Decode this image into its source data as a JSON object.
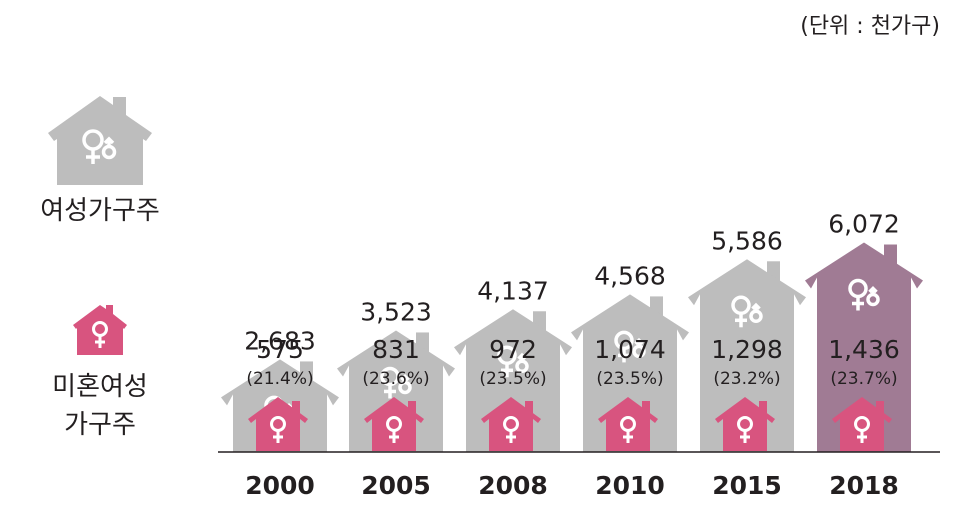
{
  "unit_label": "(단위 : 천가구)",
  "legend": {
    "all_label": "여성가구주",
    "unmarried_label_line1": "미혼여성",
    "unmarried_label_line2": "가구주"
  },
  "colors": {
    "house_gray": "#bdbdbd",
    "house_highlight": "#a07b94",
    "pink": "#d8547f",
    "text": "#231f20"
  },
  "icons": {
    "all_icon": "female-with-child-icon",
    "unmarried_icon": "female-symbol-icon"
  },
  "chart_data": {
    "type": "bar",
    "categories": [
      "2000",
      "2005",
      "2008",
      "2010",
      "2015",
      "2018"
    ],
    "series": [
      {
        "name": "여성가구주",
        "values": [
          2683,
          3523,
          4137,
          4568,
          5586,
          6072
        ]
      },
      {
        "name": "미혼여성 가구주",
        "values": [
          575,
          831,
          972,
          1074,
          1298,
          1436
        ]
      }
    ],
    "value_labels": [
      "2,683",
      "3,523",
      "4,137",
      "4,568",
      "5,586",
      "6,072"
    ],
    "unmarried_labels": [
      "575",
      "831",
      "972",
      "1,074",
      "1,298",
      "1,436"
    ],
    "share_labels": [
      "(21.4%)",
      "(23.6%)",
      "(23.5%)",
      "(23.5%)",
      "(23.2%)",
      "(23.7%)"
    ],
    "highlight_category": "2018"
  }
}
